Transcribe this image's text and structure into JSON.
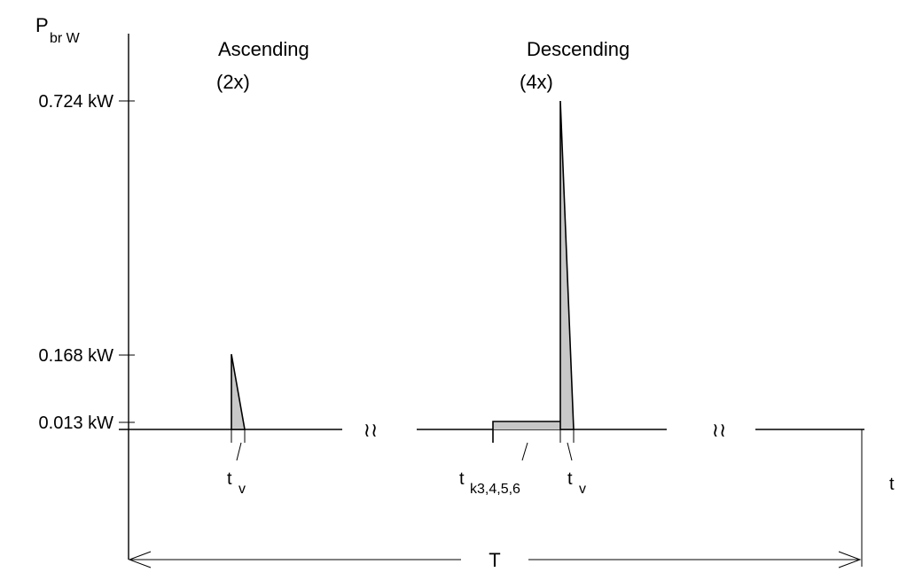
{
  "y_axis": {
    "symbol": "P",
    "subscript": "br W"
  },
  "x_axis": {
    "label": "t"
  },
  "annotations": {
    "ascending": "Ascending",
    "ascending_count": "(2x)",
    "descending": "Descending",
    "descending_count": "(4x)"
  },
  "ticks": [
    {
      "label": "0.724 kW",
      "value": 0.724
    },
    {
      "label": "0.168 kW",
      "value": 0.168
    },
    {
      "label": "0.013 kW",
      "value": 0.013
    }
  ],
  "time_labels": {
    "tv_ascending": {
      "main": "t",
      "sub": "v"
    },
    "tk": {
      "main": "t",
      "sub": "k3,4,5,6"
    },
    "tv_descending": {
      "main": "t",
      "sub": "v"
    }
  },
  "break_symbol": "≀≀",
  "period_label": "T",
  "colors": {
    "fill": "#c8c8c8",
    "line": "#000000"
  }
}
